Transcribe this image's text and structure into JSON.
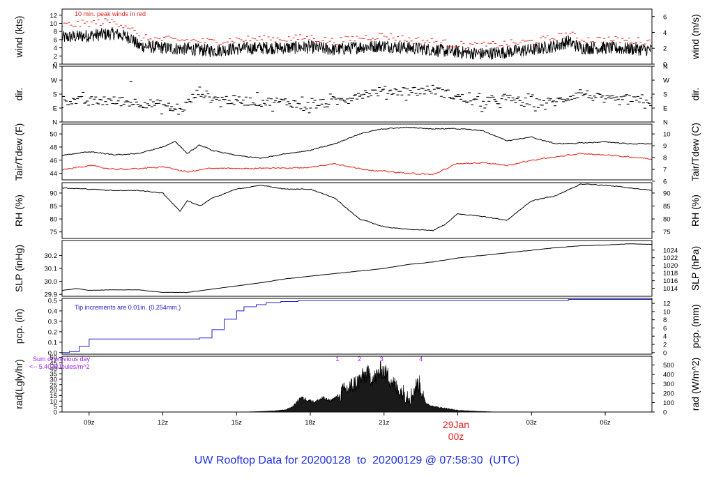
{
  "page_title": "UW Rooftop Data for 20200128  to  20200129 @ 07:58:30  (UTC)",
  "colors": {
    "black": "#000000",
    "red": "#e0201c",
    "blue": "#2020d0",
    "purple": "#a020f0",
    "title_blue": "#1f30e0",
    "date_red": "#e0201c"
  },
  "chart_data": {
    "type": "line",
    "x_axis": {
      "ticks": [
        "09z",
        "12z",
        "15z",
        "18z",
        "21z",
        "00z",
        "03z",
        "06z"
      ],
      "tick_hours": [
        9,
        12,
        15,
        18,
        21,
        24,
        27,
        30
      ],
      "xlim": [
        7.9,
        31.9
      ],
      "date_label": "29Jan",
      "date_sub": "00z"
    },
    "panels": [
      {
        "id": "wind",
        "ylabel_left": "wind (kts)",
        "ylabel_right": "wind (m/s)",
        "ylim": [
          0,
          13.5
        ],
        "left_ticks": [
          0,
          2,
          4,
          6,
          8,
          10,
          12
        ],
        "right_ticks": [
          {
            "v": 0,
            "l": "0"
          },
          {
            "v": 3.89,
            "l": "2"
          },
          {
            "v": 7.78,
            "l": "4"
          },
          {
            "v": 11.66,
            "l": "6"
          }
        ],
        "annotation": "10 min. peak winds in red",
        "series": [
          {
            "color": "#000000",
            "kind": "noisy",
            "x": [
              7.9,
              9,
              10,
              10.7,
              11,
              12,
              13,
              14,
              15,
              16,
              17,
              18,
              19,
              20,
              21,
              22,
              23,
              24,
              25,
              26,
              27,
              28,
              28.5,
              29,
              30,
              31,
              31.9
            ],
            "y": [
              6.5,
              7,
              7.5,
              6.5,
              4.5,
              4,
              3.7,
              3.3,
              3.8,
              4,
              4,
              4.2,
              3.5,
              4.2,
              4.5,
              4,
              3.5,
              3,
              2.5,
              3,
              3.5,
              4.5,
              5.5,
              4,
              4,
              3.8,
              3.5
            ],
            "amp": 1.6
          },
          {
            "color": "#e0201c",
            "kind": "peaks",
            "x": [
              7.9,
              9,
              10,
              10.7,
              11,
              12,
              13,
              14,
              15,
              16,
              17,
              18,
              19,
              20,
              21,
              22,
              23,
              24,
              25,
              26,
              27,
              28,
              28.5,
              29,
              30,
              31,
              31.9
            ],
            "y": [
              9.5,
              10,
              10.5,
              9,
              6.5,
              6,
              5.8,
              5.5,
              6,
              6.2,
              6.2,
              6.5,
              5.5,
              6.5,
              7,
              6,
              5.5,
              4.8,
              4.5,
              5,
              5.5,
              6.5,
              7.5,
              6,
              6,
              5.8,
              5.5
            ],
            "amp": 0.9
          }
        ]
      },
      {
        "id": "dir",
        "ylabel_left": "dir.",
        "ylabel_right": "dir.",
        "ylim": [
          0,
          360
        ],
        "left_ticks": [
          {
            "v": 0,
            "l": "N"
          },
          {
            "v": 90,
            "l": "E"
          },
          {
            "v": 180,
            "l": "S"
          },
          {
            "v": 270,
            "l": "W"
          },
          {
            "v": 360,
            "l": "N"
          }
        ],
        "right_ticks": [
          {
            "v": 0,
            "l": "N"
          },
          {
            "v": 90,
            "l": "E"
          },
          {
            "v": 180,
            "l": "S"
          },
          {
            "v": 270,
            "l": "W"
          },
          {
            "v": 360,
            "l": "N"
          }
        ],
        "series": [
          {
            "color": "#000000",
            "kind": "dashes",
            "x": [
              7.9,
              9,
              10,
              11,
              12,
              12.7,
              13,
              13.5,
              14,
              15,
              16,
              17,
              18,
              19,
              20,
              21,
              22,
              23,
              24,
              25,
              26,
              27,
              28,
              29,
              30,
              31,
              31.9
            ],
            "y": [
              140,
              135,
              135,
              125,
              110,
              70,
              120,
              200,
              150,
              140,
              130,
              130,
              105,
              130,
              180,
              200,
              200,
              210,
              160,
              120,
              150,
              120,
              130,
              190,
              140,
              140,
              130
            ],
            "amp": 30
          }
        ]
      },
      {
        "id": "temp",
        "ylabel_left": "Tair/Tdew (F)",
        "ylabel_right": "Tair/Tdew (C)",
        "ylim": [
          43,
          51.5
        ],
        "left_ticks": [
          44,
          46,
          48,
          50
        ],
        "right_ticks": [
          {
            "v": 42.8,
            "l": "6"
          },
          {
            "v": 44.6,
            "l": "7"
          },
          {
            "v": 46.4,
            "l": "8"
          },
          {
            "v": 48.2,
            "l": "9"
          },
          {
            "v": 50,
            "l": "10"
          }
        ],
        "series": [
          {
            "color": "#000000",
            "kind": "smooth",
            "x": [
              7.9,
              9,
              10,
              11,
              12,
              12.5,
              13,
              13.5,
              14,
              15,
              16,
              17,
              18,
              19,
              20,
              21,
              22,
              23,
              24,
              25,
              26,
              27,
              28,
              29,
              30,
              31,
              31.9
            ],
            "y": [
              46.7,
              47.3,
              46.8,
              47,
              48,
              48.9,
              47,
              48.3,
              47.5,
              46.7,
              46.3,
              47,
              47.5,
              48.5,
              50,
              50.8,
              51,
              50.8,
              50.8,
              50.5,
              49,
              49.5,
              48.5,
              48.6,
              48.8,
              48.5,
              48.5
            ],
            "amp": 0.15
          },
          {
            "color": "#e0201c",
            "kind": "smooth",
            "x": [
              7.9,
              9,
              10,
              11,
              12,
              13,
              14,
              15,
              16,
              17,
              18,
              19,
              20,
              21,
              22,
              23,
              24,
              25,
              26,
              27,
              28,
              29,
              30,
              31,
              31.9
            ],
            "y": [
              44.5,
              45.2,
              44.6,
              44.7,
              45,
              44.2,
              44.8,
              44.7,
              44.8,
              44.8,
              44.9,
              45.5,
              44.7,
              44.3,
              44,
              43.8,
              45.5,
              45.6,
              45.2,
              46,
              46.5,
              47,
              46.8,
              46.5,
              46.2
            ],
            "amp": 0.18
          }
        ]
      },
      {
        "id": "rh",
        "ylabel_left": "RH (%)",
        "ylabel_right": "RH (%)",
        "ylim": [
          72.5,
          94
        ],
        "left_ticks": [
          75,
          80,
          85,
          90
        ],
        "right_ticks": [
          {
            "v": 75,
            "l": "75"
          },
          {
            "v": 80,
            "l": "80"
          },
          {
            "v": 85,
            "l": "85"
          },
          {
            "v": 90,
            "l": "90"
          }
        ],
        "series": [
          {
            "color": "#000000",
            "kind": "smooth",
            "x": [
              7.9,
              9,
              10,
              11,
              12,
              12.7,
              13,
              13.5,
              14,
              15,
              16,
              17,
              18,
              19,
              20,
              21,
              22,
              23,
              23.5,
              24,
              25,
              26,
              27,
              28,
              29,
              30,
              31,
              31.9
            ],
            "y": [
              92,
              91.5,
              91,
              91,
              90,
              83,
              87,
              85,
              88,
              91.5,
              93,
              91.5,
              91.5,
              88,
              80,
              77,
              76,
              75.5,
              78,
              82,
              81,
              79.5,
              87,
              89,
              93.5,
              93,
              92,
              91
            ],
            "amp": 0.3
          }
        ]
      },
      {
        "id": "slp",
        "ylabel_left": "SLP (inHg)",
        "ylabel_right": "SLP (hPa)",
        "ylim": [
          29.885,
          30.315
        ],
        "left_ticks": [
          29.9,
          30.0,
          30.1,
          30.2
        ],
        "right_ticks": [
          {
            "v": 29.946,
            "l": "1014"
          },
          {
            "v": 30.005,
            "l": "1016"
          },
          {
            "v": 30.064,
            "l": "1018"
          },
          {
            "v": 30.123,
            "l": "1020"
          },
          {
            "v": 30.182,
            "l": "1022"
          },
          {
            "v": 30.241,
            "l": "1024"
          }
        ],
        "series": [
          {
            "color": "#000000",
            "kind": "smooth",
            "x": [
              7.9,
              8.5,
              9,
              10,
              11,
              12,
              13,
              14,
              15,
              16,
              17,
              18,
              19,
              20,
              21,
              22,
              23,
              24,
              25,
              26,
              27,
              28,
              29,
              30,
              31,
              31.9
            ],
            "y": [
              29.93,
              29.945,
              29.93,
              29.935,
              29.935,
              29.915,
              29.915,
              29.94,
              29.965,
              29.99,
              30.02,
              30.04,
              30.06,
              30.08,
              30.1,
              30.13,
              30.15,
              30.18,
              30.2,
              30.22,
              30.24,
              30.26,
              30.275,
              30.28,
              30.29,
              30.285
            ],
            "amp": 0.002
          }
        ]
      },
      {
        "id": "pcp",
        "ylabel_left": "pcp. (in)",
        "ylabel_right": "pcp. (mm)",
        "ylim": [
          -0.015,
          0.52
        ],
        "left_ticks": [
          0.0,
          0.1,
          0.2,
          0.3,
          0.4,
          0.5
        ],
        "right_ticks": [
          {
            "v": 0,
            "l": "0"
          },
          {
            "v": 0.0787,
            "l": "2"
          },
          {
            "v": 0.1575,
            "l": "4"
          },
          {
            "v": 0.2362,
            "l": "6"
          },
          {
            "v": 0.315,
            "l": "8"
          },
          {
            "v": 0.3937,
            "l": "10"
          },
          {
            "v": 0.4724,
            "l": "12"
          }
        ],
        "annotation": "Tip increments are 0.01in. (0.254mm.)",
        "series": [
          {
            "color": "#2020d0",
            "kind": "step",
            "x": [
              7.9,
              8.2,
              8.6,
              9,
              13.3,
              13.5,
              14,
              14.5,
              15,
              15.3,
              15.8,
              16.2,
              16.8,
              17.5,
              28,
              28.5,
              31.9
            ],
            "y": [
              0,
              0.01,
              0.06,
              0.13,
              0.13,
              0.14,
              0.22,
              0.32,
              0.4,
              0.44,
              0.46,
              0.48,
              0.49,
              0.5,
              0.5,
              0.51,
              0.51
            ]
          }
        ]
      },
      {
        "id": "rad",
        "ylabel_left": "rad(Lgly/hr)",
        "ylabel_right": "rad (W/m^2)",
        "ylim": [
          0,
          51
        ],
        "left_ticks": [
          0,
          5,
          10,
          15,
          20,
          25,
          30,
          35,
          40,
          45,
          50
        ],
        "right_ticks": [
          {
            "v": 0,
            "l": "0"
          },
          {
            "v": 8.6,
            "l": "100"
          },
          {
            "v": 17.2,
            "l": "200"
          },
          {
            "v": 25.8,
            "l": "300"
          },
          {
            "v": 34.4,
            "l": "400"
          },
          {
            "v": 43,
            "l": "500"
          }
        ],
        "annotation": "Sum of previous day",
        "annotation2": "<-- 5.40 MJoules/m^2",
        "markers": [
          {
            "x": 19.1,
            "label": "1"
          },
          {
            "x": 20.0,
            "label": "2"
          },
          {
            "x": 20.9,
            "label": "3"
          },
          {
            "x": 22.5,
            "label": "4"
          }
        ],
        "series": [
          {
            "color": "#000000",
            "kind": "fill",
            "x": [
              15.3,
              16,
              16.5,
              17,
              17.3,
              17.6,
              17.9,
              18.2,
              18.5,
              18.8,
              19.1,
              19.4,
              19.7,
              20,
              20.3,
              20.6,
              20.9,
              21.2,
              21.5,
              21.8,
              22.1,
              22.4,
              22.7,
              23,
              23.3,
              23.6,
              24,
              24.5,
              25,
              25.6
            ],
            "y": [
              0,
              0.5,
              1,
              2,
              5,
              13,
              11,
              9,
              13,
              10,
              14,
              17,
              22,
              27,
              33,
              28,
              37,
              30,
              20,
              15,
              12,
              25,
              8,
              5,
              4,
              3,
              1.5,
              1,
              0.5,
              0
            ],
            "amp": 9
          }
        ]
      }
    ]
  }
}
